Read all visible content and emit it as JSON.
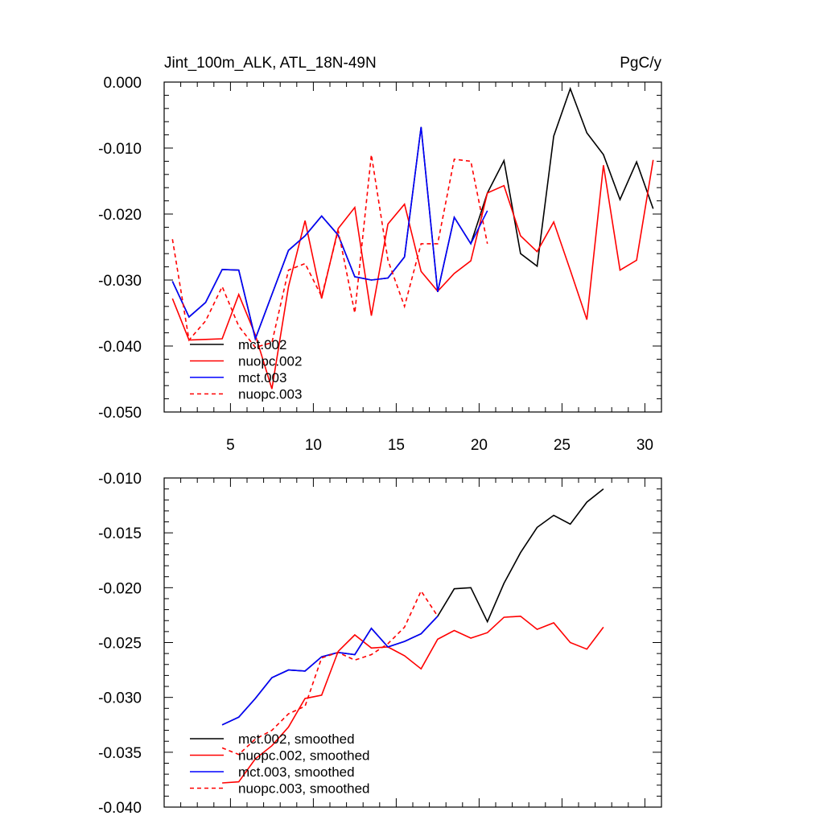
{
  "chart_data": [
    {
      "type": "line",
      "title": "Jint_100m_ALK, ATL_18N-49N",
      "units": "PgC/y",
      "xlabel": "",
      "ylabel": "",
      "xlim": [
        1,
        31
      ],
      "ylim": [
        -0.05,
        0.0
      ],
      "xticks": [
        5,
        10,
        15,
        20,
        25,
        30
      ],
      "yticks": [
        0.0,
        -0.01,
        -0.02,
        -0.03,
        -0.04,
        -0.05
      ],
      "ytick_labels": [
        "0.000",
        "-0.010",
        "-0.020",
        "-0.030",
        "-0.040",
        "-0.050"
      ],
      "grid": false,
      "legend_position": "bottom-left",
      "series": [
        {
          "name": "mct.002",
          "color": "#000000",
          "dash": "solid",
          "x": [
            1.5,
            2.5,
            3.5,
            4.5,
            5.5,
            6.5,
            7.5,
            8.5,
            9.5,
            10.5,
            11.5,
            12.5,
            13.5,
            14.5,
            15.5,
            16.5,
            17.5,
            18.5,
            19.5,
            20.5,
            21.5,
            22.5,
            23.5,
            24.5,
            25.5,
            26.5,
            27.5,
            28.5,
            29.5,
            30.5
          ],
          "values": [
            -0.0302,
            -0.0356,
            -0.0334,
            -0.0284,
            -0.0285,
            -0.0389,
            -0.0322,
            -0.0255,
            -0.0233,
            -0.0203,
            -0.0232,
            -0.0295,
            -0.03,
            -0.0297,
            -0.0265,
            -0.0068,
            -0.0318,
            -0.0205,
            -0.0245,
            -0.0168,
            -0.0119,
            -0.026,
            -0.0279,
            -0.0082,
            -0.001,
            -0.0077,
            -0.011,
            -0.0178,
            -0.0121,
            -0.0192
          ]
        },
        {
          "name": "nuopc.002",
          "color": "#ff0000",
          "dash": "solid",
          "x": [
            1.5,
            2.5,
            3.5,
            4.5,
            5.5,
            6.5,
            7.5,
            8.5,
            9.5,
            10.5,
            11.5,
            12.5,
            13.5,
            14.5,
            15.5,
            16.5,
            17.5,
            18.5,
            19.5,
            20.5,
            21.5,
            22.5,
            23.5,
            24.5,
            25.5,
            26.5,
            27.5,
            28.5,
            29.5,
            30.5
          ],
          "values": [
            -0.0328,
            -0.0391,
            -0.039,
            -0.0389,
            -0.0322,
            -0.0383,
            -0.0465,
            -0.031,
            -0.021,
            -0.0328,
            -0.0222,
            -0.019,
            -0.0354,
            -0.0215,
            -0.0185,
            -0.0287,
            -0.0317,
            -0.029,
            -0.0271,
            -0.0168,
            -0.0157,
            -0.0233,
            -0.0257,
            -0.0212,
            -0.0285,
            -0.036,
            -0.0126,
            -0.0285,
            -0.027,
            -0.0118
          ]
        },
        {
          "name": "mct.003",
          "color": "#0000ff",
          "dash": "solid",
          "x": [
            1.5,
            2.5,
            3.5,
            4.5,
            5.5,
            6.5,
            7.5,
            8.5,
            9.5,
            10.5,
            11.5,
            12.5,
            13.5,
            14.5,
            15.5,
            16.5,
            17.5,
            18.5,
            19.5,
            20.5
          ],
          "values": [
            -0.0302,
            -0.0356,
            -0.0334,
            -0.0284,
            -0.0285,
            -0.0389,
            -0.0322,
            -0.0255,
            -0.0233,
            -0.0203,
            -0.0232,
            -0.0295,
            -0.03,
            -0.0297,
            -0.0265,
            -0.0068,
            -0.0318,
            -0.0205,
            -0.0245,
            -0.0195
          ]
        },
        {
          "name": "nuopc.003",
          "color": "#ff0000",
          "dash": "dashed",
          "x": [
            1.5,
            2.5,
            3.5,
            4.5,
            5.5,
            6.5,
            7.5,
            8.5,
            9.5,
            10.5,
            11.5,
            12.5,
            13.5,
            14.5,
            15.5,
            16.5,
            17.5,
            18.5,
            19.5,
            20.5
          ],
          "values": [
            -0.0238,
            -0.0391,
            -0.0362,
            -0.031,
            -0.037,
            -0.0402,
            -0.0395,
            -0.0285,
            -0.0275,
            -0.0325,
            -0.0225,
            -0.035,
            -0.011,
            -0.027,
            -0.034,
            -0.0245,
            -0.0245,
            -0.0117,
            -0.012,
            -0.0245
          ]
        }
      ]
    },
    {
      "type": "line",
      "title": "",
      "xlabel": "",
      "ylabel": "",
      "xlim": [
        1,
        31
      ],
      "ylim": [
        -0.04,
        -0.01
      ],
      "xticks": [
        5,
        10,
        15,
        20,
        25,
        30
      ],
      "yticks": [
        -0.01,
        -0.015,
        -0.02,
        -0.025,
        -0.03,
        -0.035,
        -0.04
      ],
      "ytick_labels": [
        "-0.010",
        "-0.015",
        "-0.020",
        "-0.025",
        "-0.030",
        "-0.035",
        "-0.040"
      ],
      "grid": false,
      "legend_position": "bottom-left",
      "series": [
        {
          "name": "mct.002, smoothed",
          "color": "#000000",
          "dash": "solid",
          "x": [
            4.5,
            5.5,
            6.5,
            7.5,
            8.5,
            9.5,
            10.5,
            11.5,
            12.5,
            13.5,
            14.5,
            15.5,
            16.5,
            17.5,
            18.5,
            19.5,
            20.5,
            21.5,
            22.5,
            23.5,
            24.5,
            25.5,
            26.5,
            27.5
          ],
          "values": [
            -0.0325,
            -0.0318,
            -0.0301,
            -0.0282,
            -0.0275,
            -0.0276,
            -0.0263,
            -0.0259,
            -0.0261,
            -0.0237,
            -0.0254,
            -0.0249,
            -0.0242,
            -0.0226,
            -0.0201,
            -0.02,
            -0.0231,
            -0.0196,
            -0.0168,
            -0.0145,
            -0.0134,
            -0.0142,
            -0.0122,
            -0.011
          ]
        },
        {
          "name": "nuopc.002, smoothed",
          "color": "#ff0000",
          "dash": "solid",
          "x": [
            4.5,
            5.5,
            6.5,
            7.5,
            8.5,
            9.5,
            10.5,
            11.5,
            12.5,
            13.5,
            14.5,
            15.5,
            16.5,
            17.5,
            18.5,
            19.5,
            20.5,
            21.5,
            22.5,
            23.5,
            24.5,
            25.5,
            26.5,
            27.5
          ],
          "values": [
            -0.0378,
            -0.0377,
            -0.0356,
            -0.0344,
            -0.0327,
            -0.0301,
            -0.0298,
            -0.0258,
            -0.0243,
            -0.0255,
            -0.0254,
            -0.0262,
            -0.0274,
            -0.0247,
            -0.0239,
            -0.0246,
            -0.0241,
            -0.0227,
            -0.0226,
            -0.0238,
            -0.0232,
            -0.025,
            -0.0256,
            -0.0236
          ]
        },
        {
          "name": "mct.003, smoothed",
          "color": "#0000ff",
          "dash": "solid",
          "x": [
            4.5,
            5.5,
            6.5,
            7.5,
            8.5,
            9.5,
            10.5,
            11.5,
            12.5,
            13.5,
            14.5,
            15.5,
            16.5,
            17.5
          ],
          "values": [
            -0.0325,
            -0.0318,
            -0.0301,
            -0.0282,
            -0.0275,
            -0.0276,
            -0.0263,
            -0.0259,
            -0.0261,
            -0.0237,
            -0.0254,
            -0.0249,
            -0.0242,
            -0.0226
          ]
        },
        {
          "name": "nuopc.003, smoothed",
          "color": "#ff0000",
          "dash": "dashed",
          "x": [
            4.5,
            5.5,
            6.5,
            7.5,
            8.5,
            9.5,
            10.5,
            11.5,
            12.5,
            13.5,
            14.5,
            15.5,
            16.5,
            17.5
          ],
          "values": [
            -0.0346,
            -0.0352,
            -0.0338,
            -0.033,
            -0.0315,
            -0.0308,
            -0.0264,
            -0.0259,
            -0.0266,
            -0.0261,
            -0.0251,
            -0.0236,
            -0.0203,
            -0.0226
          ]
        }
      ]
    }
  ]
}
